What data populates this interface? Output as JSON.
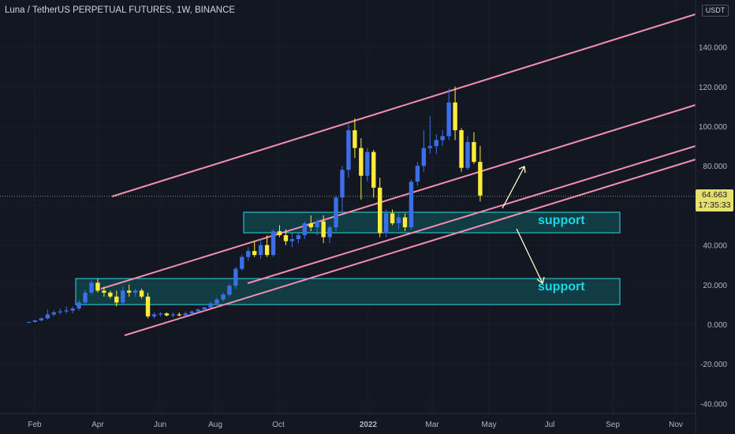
{
  "header": {
    "title": "Luna / TetherUS PERPETUAL FUTURES, 1W, BINANCE"
  },
  "price_scale": {
    "unit": "USDT"
  },
  "last_price": {
    "value": "64.663",
    "countdown": "17:35:33"
  },
  "annotations": {
    "support_upper": "support",
    "support_lower": "support"
  },
  "colors": {
    "background": "#131722",
    "bull": "#3a6fe8",
    "bear": "#ffeb3b",
    "channel": "#f48fb1",
    "zone_border": "#2ed8e8",
    "zone_fill": "#124a4f",
    "arrow": "#ffffcc"
  },
  "chart_data": {
    "type": "candlestick",
    "title": "Luna / TetherUS PERPETUAL FUTURES, 1W, BINANCE",
    "x_axis": {
      "tick_labels": [
        "Feb",
        "Apr",
        "Jun",
        "Aug",
        "Oct",
        "2022",
        "Mar",
        "May",
        "Jul",
        "Sep",
        "Nov"
      ]
    },
    "y_axis": {
      "range": [
        -45,
        155
      ],
      "tick_labels": [
        "-40.000",
        "-20.000",
        "0.000",
        "20.000",
        "40.000",
        "60.000",
        "80.000",
        "100.000",
        "120.000",
        "140.000"
      ],
      "side": "right"
    },
    "series": [
      {
        "ohlc": [
          {
            "o": 1,
            "h": 1.5,
            "l": 0.8,
            "c": 1.2
          },
          {
            "o": 1.2,
            "h": 2.2,
            "l": 1,
            "c": 2
          },
          {
            "o": 2,
            "h": 3.5,
            "l": 1.5,
            "c": 3
          },
          {
            "o": 3,
            "h": 7.5,
            "l": 2.5,
            "c": 5
          },
          {
            "o": 5,
            "h": 7,
            "l": 4,
            "c": 6
          },
          {
            "o": 6,
            "h": 8,
            "l": 5,
            "c": 6.5
          },
          {
            "o": 6.5,
            "h": 9,
            "l": 5.5,
            "c": 7
          },
          {
            "o": 7,
            "h": 9,
            "l": 5.5,
            "c": 8
          },
          {
            "o": 8,
            "h": 12,
            "l": 7,
            "c": 11
          },
          {
            "o": 11,
            "h": 17.5,
            "l": 10,
            "c": 16
          },
          {
            "o": 16,
            "h": 22,
            "l": 15,
            "c": 21
          },
          {
            "o": 21,
            "h": 23,
            "l": 16,
            "c": 17
          },
          {
            "o": 17,
            "h": 19,
            "l": 14,
            "c": 16
          },
          {
            "o": 16,
            "h": 17,
            "l": 13,
            "c": 14
          },
          {
            "o": 14,
            "h": 17,
            "l": 9,
            "c": 11
          },
          {
            "o": 11,
            "h": 19,
            "l": 10,
            "c": 17
          },
          {
            "o": 17,
            "h": 20,
            "l": 14,
            "c": 16
          },
          {
            "o": 16,
            "h": 18,
            "l": 14,
            "c": 17
          },
          {
            "o": 17,
            "h": 18,
            "l": 13,
            "c": 14
          },
          {
            "o": 14,
            "h": 16,
            "l": 3,
            "c": 4
          },
          {
            "o": 4,
            "h": 6,
            "l": 3,
            "c": 5
          },
          {
            "o": 5,
            "h": 6,
            "l": 4,
            "c": 5.5
          },
          {
            "o": 5.5,
            "h": 6,
            "l": 4,
            "c": 4.5
          },
          {
            "o": 4.5,
            "h": 6,
            "l": 3.5,
            "c": 5
          },
          {
            "o": 5,
            "h": 6,
            "l": 4,
            "c": 4.5
          },
          {
            "o": 4.5,
            "h": 6.5,
            "l": 4,
            "c": 5.5
          },
          {
            "o": 5.5,
            "h": 7,
            "l": 5,
            "c": 6.5
          },
          {
            "o": 6.5,
            "h": 8,
            "l": 6,
            "c": 7.5
          },
          {
            "o": 7.5,
            "h": 9,
            "l": 6.5,
            "c": 8.5
          },
          {
            "o": 8.5,
            "h": 11.5,
            "l": 8,
            "c": 10.5
          },
          {
            "o": 10.5,
            "h": 13.5,
            "l": 10,
            "c": 12.5
          },
          {
            "o": 12.5,
            "h": 16,
            "l": 11.5,
            "c": 15
          },
          {
            "o": 15,
            "h": 20.5,
            "l": 14,
            "c": 19.5
          },
          {
            "o": 19.5,
            "h": 29,
            "l": 18,
            "c": 28
          },
          {
            "o": 28,
            "h": 35,
            "l": 27,
            "c": 34
          },
          {
            "o": 34,
            "h": 39,
            "l": 32,
            "c": 37
          },
          {
            "o": 37,
            "h": 42,
            "l": 34,
            "c": 35
          },
          {
            "o": 35,
            "h": 43,
            "l": 33,
            "c": 40
          },
          {
            "o": 40,
            "h": 45,
            "l": 34,
            "c": 35
          },
          {
            "o": 35,
            "h": 48,
            "l": 34,
            "c": 47
          },
          {
            "o": 47,
            "h": 50,
            "l": 44,
            "c": 45
          },
          {
            "o": 45,
            "h": 48,
            "l": 40,
            "c": 42
          },
          {
            "o": 42,
            "h": 46,
            "l": 39,
            "c": 43
          },
          {
            "o": 43,
            "h": 46,
            "l": 41,
            "c": 45
          },
          {
            "o": 45,
            "h": 52,
            "l": 43,
            "c": 51
          },
          {
            "o": 51,
            "h": 55,
            "l": 47,
            "c": 49
          },
          {
            "o": 49,
            "h": 53,
            "l": 45,
            "c": 52
          },
          {
            "o": 52,
            "h": 55,
            "l": 41,
            "c": 44
          },
          {
            "o": 44,
            "h": 50,
            "l": 41,
            "c": 49
          },
          {
            "o": 49,
            "h": 65,
            "l": 47,
            "c": 64
          },
          {
            "o": 64,
            "h": 80,
            "l": 56,
            "c": 78
          },
          {
            "o": 78,
            "h": 101,
            "l": 74,
            "c": 98
          },
          {
            "o": 98,
            "h": 104,
            "l": 84,
            "c": 89
          },
          {
            "o": 89,
            "h": 94,
            "l": 63,
            "c": 75
          },
          {
            "o": 75,
            "h": 89,
            "l": 72,
            "c": 87
          },
          {
            "o": 87,
            "h": 88,
            "l": 64,
            "c": 69
          },
          {
            "o": 69,
            "h": 74,
            "l": 44,
            "c": 46
          },
          {
            "o": 46,
            "h": 58,
            "l": 44,
            "c": 56
          },
          {
            "o": 56,
            "h": 58,
            "l": 50,
            "c": 51
          },
          {
            "o": 51,
            "h": 56,
            "l": 48,
            "c": 54
          },
          {
            "o": 54,
            "h": 56,
            "l": 47,
            "c": 49
          },
          {
            "o": 49,
            "h": 73,
            "l": 48,
            "c": 72
          },
          {
            "o": 72,
            "h": 82,
            "l": 70,
            "c": 80
          },
          {
            "o": 80,
            "h": 98,
            "l": 77,
            "c": 89
          },
          {
            "o": 89,
            "h": 105,
            "l": 86,
            "c": 90
          },
          {
            "o": 90,
            "h": 96,
            "l": 86,
            "c": 93
          },
          {
            "o": 93,
            "h": 98,
            "l": 90,
            "c": 95
          },
          {
            "o": 95,
            "h": 119,
            "l": 93,
            "c": 112
          },
          {
            "o": 112,
            "h": 120,
            "l": 93,
            "c": 98
          },
          {
            "o": 98,
            "h": 99,
            "l": 77,
            "c": 79
          },
          {
            "o": 79,
            "h": 95,
            "l": 78,
            "c": 92
          },
          {
            "o": 92,
            "h": 97,
            "l": 81,
            "c": 82
          },
          {
            "o": 82,
            "h": 90,
            "l": 62,
            "c": 65
          }
        ]
      }
    ],
    "channel_lines": 4,
    "support_zones": 2,
    "last_price": 64.663
  }
}
